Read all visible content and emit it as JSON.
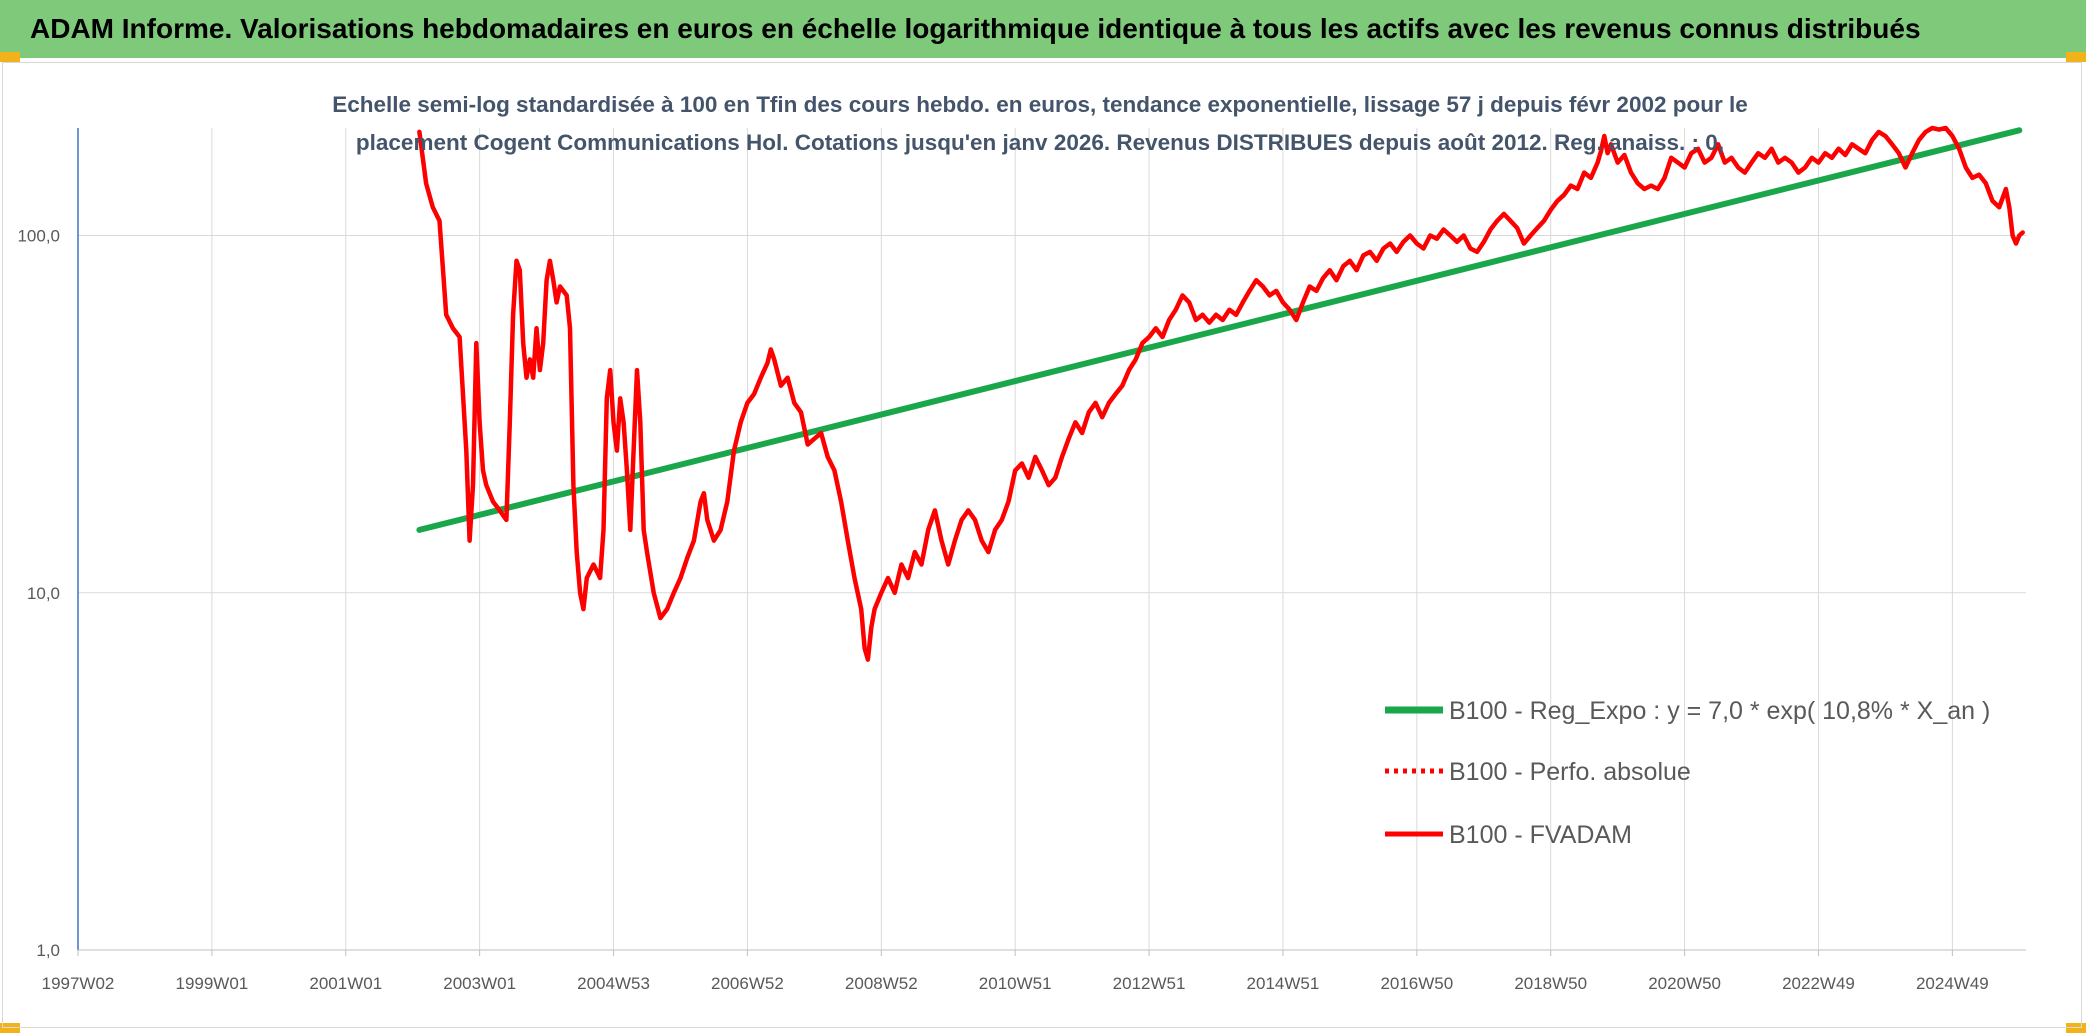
{
  "header": {
    "title": "ADAM Informe. Valorisations hebdomadaires en euros en échelle logarithmique identique à tous les actifs avec les revenus connus distribués"
  },
  "chart_data": {
    "type": "line",
    "subtitle_line1": "Echelle semi-log standardisée à 100 en Tfin des cours hebdo. en euros, tendance exponentielle, lissage 57 j depuis févr 2002 pour le",
    "subtitle_line2": "placement Cogent Communications Hol. Cotations jusqu'en janv 2026. Revenus DISTRIBUES depuis août 2012. Reg. anaiss. : 0,",
    "y_scale": "log",
    "ylim": [
      1,
      200
    ],
    "y_ticks": [
      {
        "value": 1,
        "label": "1,0"
      },
      {
        "value": 10,
        "label": "10,0"
      },
      {
        "value": 100,
        "label": "100,0"
      }
    ],
    "xlim": [
      1997.0,
      2026.1
    ],
    "x_ticks": [
      {
        "value": 1997.0,
        "label": "1997W02"
      },
      {
        "value": 1999.0,
        "label": "1999W01"
      },
      {
        "value": 2001.0,
        "label": "2001W01"
      },
      {
        "value": 2003.0,
        "label": "2003W01"
      },
      {
        "value": 2005.0,
        "label": "2004W53"
      },
      {
        "value": 2007.0,
        "label": "2006W52"
      },
      {
        "value": 2009.0,
        "label": "2008W52"
      },
      {
        "value": 2011.0,
        "label": "2010W51"
      },
      {
        "value": 2013.0,
        "label": "2012W51"
      },
      {
        "value": 2015.0,
        "label": "2014W51"
      },
      {
        "value": 2017.0,
        "label": "2016W50"
      },
      {
        "value": 2019.0,
        "label": "2018W50"
      },
      {
        "value": 2021.0,
        "label": "2020W50"
      },
      {
        "value": 2023.0,
        "label": "2022W49"
      },
      {
        "value": 2025.0,
        "label": "2024W49"
      }
    ],
    "legend_position": "bottom-right",
    "grid": true,
    "series": [
      {
        "name": "B100 - Reg_Expo : y = 7,0 * exp( 10,8% *  X_an )",
        "color": "#1aa64a",
        "style": "solid",
        "points": [
          [
            2002.1,
            15.0
          ],
          [
            2026.0,
            197.0
          ]
        ]
      },
      {
        "name": "B100 - Perfo. absolue",
        "color": "#ff0000",
        "style": "dotted",
        "points": []
      },
      {
        "name": "B100 - FVADAM",
        "color": "#ff0000",
        "style": "solid",
        "points": [
          [
            2002.1,
            195
          ],
          [
            2002.2,
            140
          ],
          [
            2002.3,
            120
          ],
          [
            2002.4,
            110
          ],
          [
            2002.5,
            60
          ],
          [
            2002.6,
            55
          ],
          [
            2002.7,
            52
          ],
          [
            2002.8,
            25
          ],
          [
            2002.85,
            14
          ],
          [
            2002.9,
            20
          ],
          [
            2002.95,
            50
          ],
          [
            2003.0,
            30
          ],
          [
            2003.05,
            22
          ],
          [
            2003.1,
            20
          ],
          [
            2003.2,
            18
          ],
          [
            2003.3,
            17
          ],
          [
            2003.4,
            16
          ],
          [
            2003.45,
            30
          ],
          [
            2003.5,
            60
          ],
          [
            2003.55,
            85
          ],
          [
            2003.6,
            80
          ],
          [
            2003.65,
            50
          ],
          [
            2003.7,
            40
          ],
          [
            2003.75,
            45
          ],
          [
            2003.8,
            40
          ],
          [
            2003.85,
            55
          ],
          [
            2003.9,
            42
          ],
          [
            2003.95,
            50
          ],
          [
            2004.0,
            75
          ],
          [
            2004.05,
            85
          ],
          [
            2004.1,
            75
          ],
          [
            2004.15,
            65
          ],
          [
            2004.2,
            72
          ],
          [
            2004.3,
            68
          ],
          [
            2004.35,
            55
          ],
          [
            2004.4,
            20
          ],
          [
            2004.45,
            13
          ],
          [
            2004.5,
            10
          ],
          [
            2004.55,
            9
          ],
          [
            2004.6,
            11
          ],
          [
            2004.7,
            12
          ],
          [
            2004.8,
            11
          ],
          [
            2004.85,
            15
          ],
          [
            2004.9,
            35
          ],
          [
            2004.95,
            42
          ],
          [
            2005.0,
            30
          ],
          [
            2005.05,
            25
          ],
          [
            2005.1,
            35
          ],
          [
            2005.15,
            30
          ],
          [
            2005.2,
            22
          ],
          [
            2005.25,
            15
          ],
          [
            2005.3,
            25
          ],
          [
            2005.35,
            42
          ],
          [
            2005.4,
            30
          ],
          [
            2005.45,
            15
          ],
          [
            2005.5,
            13
          ],
          [
            2005.6,
            10
          ],
          [
            2005.7,
            8.5
          ],
          [
            2005.8,
            9
          ],
          [
            2005.9,
            10
          ],
          [
            2006.0,
            11
          ],
          [
            2006.1,
            12.5
          ],
          [
            2006.2,
            14
          ],
          [
            2006.3,
            18
          ],
          [
            2006.35,
            19
          ],
          [
            2006.4,
            16
          ],
          [
            2006.5,
            14
          ],
          [
            2006.6,
            15
          ],
          [
            2006.7,
            18
          ],
          [
            2006.8,
            25
          ],
          [
            2006.9,
            30
          ],
          [
            2007.0,
            34
          ],
          [
            2007.1,
            36
          ],
          [
            2007.2,
            40
          ],
          [
            2007.3,
            44
          ],
          [
            2007.35,
            48
          ],
          [
            2007.4,
            45
          ],
          [
            2007.5,
            38
          ],
          [
            2007.6,
            40
          ],
          [
            2007.7,
            34
          ],
          [
            2007.8,
            32
          ],
          [
            2007.9,
            26
          ],
          [
            2008.0,
            27
          ],
          [
            2008.1,
            28
          ],
          [
            2008.2,
            24
          ],
          [
            2008.3,
            22
          ],
          [
            2008.4,
            18
          ],
          [
            2008.5,
            14
          ],
          [
            2008.6,
            11
          ],
          [
            2008.7,
            9
          ],
          [
            2008.75,
            7
          ],
          [
            2008.8,
            6.5
          ],
          [
            2008.85,
            8
          ],
          [
            2008.9,
            9
          ],
          [
            2009.0,
            10
          ],
          [
            2009.1,
            11
          ],
          [
            2009.2,
            10
          ],
          [
            2009.3,
            12
          ],
          [
            2009.4,
            11
          ],
          [
            2009.5,
            13
          ],
          [
            2009.6,
            12
          ],
          [
            2009.7,
            15
          ],
          [
            2009.8,
            17
          ],
          [
            2009.9,
            14
          ],
          [
            2010.0,
            12
          ],
          [
            2010.1,
            14
          ],
          [
            2010.2,
            16
          ],
          [
            2010.3,
            17
          ],
          [
            2010.4,
            16
          ],
          [
            2010.5,
            14
          ],
          [
            2010.6,
            13
          ],
          [
            2010.7,
            15
          ],
          [
            2010.8,
            16
          ],
          [
            2010.9,
            18
          ],
          [
            2011.0,
            22
          ],
          [
            2011.1,
            23
          ],
          [
            2011.2,
            21
          ],
          [
            2011.3,
            24
          ],
          [
            2011.4,
            22
          ],
          [
            2011.5,
            20
          ],
          [
            2011.6,
            21
          ],
          [
            2011.7,
            24
          ],
          [
            2011.8,
            27
          ],
          [
            2011.9,
            30
          ],
          [
            2012.0,
            28
          ],
          [
            2012.1,
            32
          ],
          [
            2012.2,
            34
          ],
          [
            2012.3,
            31
          ],
          [
            2012.4,
            34
          ],
          [
            2012.5,
            36
          ],
          [
            2012.6,
            38
          ],
          [
            2012.7,
            42
          ],
          [
            2012.8,
            45
          ],
          [
            2012.9,
            50
          ],
          [
            2013.0,
            52
          ],
          [
            2013.1,
            55
          ],
          [
            2013.2,
            52
          ],
          [
            2013.3,
            58
          ],
          [
            2013.4,
            62
          ],
          [
            2013.5,
            68
          ],
          [
            2013.6,
            65
          ],
          [
            2013.7,
            58
          ],
          [
            2013.8,
            60
          ],
          [
            2013.9,
            57
          ],
          [
            2014.0,
            60
          ],
          [
            2014.1,
            58
          ],
          [
            2014.2,
            62
          ],
          [
            2014.3,
            60
          ],
          [
            2014.4,
            65
          ],
          [
            2014.5,
            70
          ],
          [
            2014.6,
            75
          ],
          [
            2014.7,
            72
          ],
          [
            2014.8,
            68
          ],
          [
            2014.9,
            70
          ],
          [
            2015.0,
            65
          ],
          [
            2015.1,
            62
          ],
          [
            2015.2,
            58
          ],
          [
            2015.3,
            65
          ],
          [
            2015.4,
            72
          ],
          [
            2015.5,
            70
          ],
          [
            2015.6,
            76
          ],
          [
            2015.7,
            80
          ],
          [
            2015.8,
            75
          ],
          [
            2015.9,
            82
          ],
          [
            2016.0,
            85
          ],
          [
            2016.1,
            80
          ],
          [
            2016.2,
            88
          ],
          [
            2016.3,
            90
          ],
          [
            2016.4,
            85
          ],
          [
            2016.5,
            92
          ],
          [
            2016.6,
            95
          ],
          [
            2016.7,
            90
          ],
          [
            2016.8,
            96
          ],
          [
            2016.9,
            100
          ],
          [
            2017.0,
            95
          ],
          [
            2017.1,
            92
          ],
          [
            2017.2,
            100
          ],
          [
            2017.3,
            98
          ],
          [
            2017.4,
            104
          ],
          [
            2017.5,
            100
          ],
          [
            2017.6,
            96
          ],
          [
            2017.7,
            100
          ],
          [
            2017.8,
            92
          ],
          [
            2017.9,
            90
          ],
          [
            2018.0,
            96
          ],
          [
            2018.1,
            104
          ],
          [
            2018.2,
            110
          ],
          [
            2018.3,
            115
          ],
          [
            2018.4,
            110
          ],
          [
            2018.5,
            105
          ],
          [
            2018.6,
            95
          ],
          [
            2018.7,
            100
          ],
          [
            2018.8,
            105
          ],
          [
            2018.9,
            110
          ],
          [
            2019.0,
            118
          ],
          [
            2019.1,
            125
          ],
          [
            2019.2,
            130
          ],
          [
            2019.3,
            138
          ],
          [
            2019.4,
            135
          ],
          [
            2019.5,
            150
          ],
          [
            2019.6,
            145
          ],
          [
            2019.7,
            160
          ],
          [
            2019.75,
            172
          ],
          [
            2019.8,
            190
          ],
          [
            2019.85,
            170
          ],
          [
            2019.9,
            180
          ],
          [
            2020.0,
            160
          ],
          [
            2020.1,
            168
          ],
          [
            2020.2,
            150
          ],
          [
            2020.3,
            140
          ],
          [
            2020.4,
            135
          ],
          [
            2020.5,
            138
          ],
          [
            2020.6,
            135
          ],
          [
            2020.7,
            145
          ],
          [
            2020.8,
            165
          ],
          [
            2020.9,
            160
          ],
          [
            2021.0,
            155
          ],
          [
            2021.1,
            170
          ],
          [
            2021.2,
            175
          ],
          [
            2021.3,
            160
          ],
          [
            2021.4,
            165
          ],
          [
            2021.5,
            180
          ],
          [
            2021.6,
            160
          ],
          [
            2021.7,
            165
          ],
          [
            2021.8,
            155
          ],
          [
            2021.9,
            150
          ],
          [
            2022.0,
            160
          ],
          [
            2022.1,
            170
          ],
          [
            2022.2,
            165
          ],
          [
            2022.3,
            175
          ],
          [
            2022.4,
            160
          ],
          [
            2022.5,
            165
          ],
          [
            2022.6,
            160
          ],
          [
            2022.7,
            150
          ],
          [
            2022.8,
            155
          ],
          [
            2022.9,
            165
          ],
          [
            2023.0,
            160
          ],
          [
            2023.1,
            170
          ],
          [
            2023.2,
            165
          ],
          [
            2023.3,
            175
          ],
          [
            2023.4,
            168
          ],
          [
            2023.5,
            180
          ],
          [
            2023.6,
            175
          ],
          [
            2023.7,
            170
          ],
          [
            2023.8,
            185
          ],
          [
            2023.9,
            195
          ],
          [
            2024.0,
            190
          ],
          [
            2024.1,
            180
          ],
          [
            2024.2,
            170
          ],
          [
            2024.3,
            155
          ],
          [
            2024.4,
            170
          ],
          [
            2024.5,
            185
          ],
          [
            2024.6,
            195
          ],
          [
            2024.7,
            200
          ],
          [
            2024.8,
            198
          ],
          [
            2024.9,
            200
          ],
          [
            2025.0,
            190
          ],
          [
            2025.1,
            175
          ],
          [
            2025.2,
            155
          ],
          [
            2025.3,
            145
          ],
          [
            2025.4,
            148
          ],
          [
            2025.5,
            140
          ],
          [
            2025.6,
            125
          ],
          [
            2025.7,
            120
          ],
          [
            2025.8,
            135
          ],
          [
            2025.85,
            120
          ],
          [
            2025.9,
            100
          ],
          [
            2025.95,
            95
          ],
          [
            2026.0,
            100
          ],
          [
            2026.05,
            102
          ]
        ]
      }
    ]
  }
}
